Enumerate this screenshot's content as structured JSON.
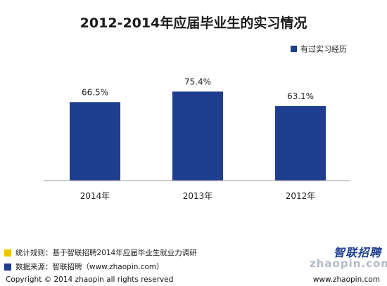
{
  "chart_data": {
    "type": "bar",
    "title": "2012-2014年应届毕业生的实习情况",
    "categories": [
      "2014年",
      "2013年",
      "2012年"
    ],
    "series": [
      {
        "name": "有过实习经历",
        "values": [
          66.5,
          75.4,
          63.1
        ]
      }
    ],
    "data_labels": [
      "66.5%",
      "75.4%",
      "63.1%"
    ],
    "ylim": [
      0,
      100
    ],
    "grid": false,
    "legend_position": "top-right",
    "bar_color": "#1f3e8f"
  },
  "footer": {
    "rule_label": "统计规则：基于智联招聘2014年应届毕业生就业力调研",
    "source_label": "数据来源：智联招聘（www.zhaopin.com）",
    "rule_color": "#f2c200",
    "source_color": "#1f3e8f"
  },
  "logo": {
    "brand": "智联招聘",
    "watermark": "zhaopin.com"
  },
  "copyright": {
    "left": "Copyright  ©  2014 zhaopin all rights reserved",
    "right": "www.zhaopin.com"
  }
}
